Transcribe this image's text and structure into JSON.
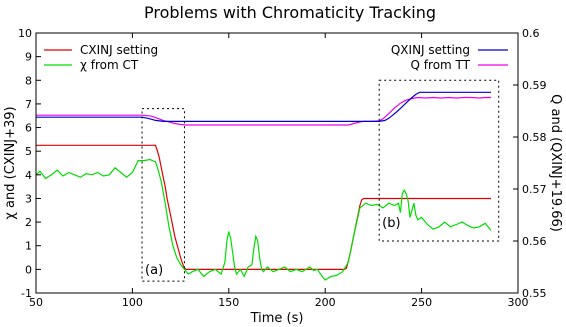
{
  "chart_data": {
    "type": "line",
    "title": "Problems with Chromaticity Tracking",
    "xlabel": "Time (s)",
    "ylabel_left": "χ and (CXINJ+39)",
    "ylabel_right": "Q and (QXINJ+19.66)",
    "xlim": [
      50,
      300
    ],
    "ylim_left": [
      -1,
      10
    ],
    "ylim_right": [
      0.55,
      0.6
    ],
    "xticks": [
      50,
      100,
      150,
      200,
      250,
      300
    ],
    "yticks_left": [
      -1,
      0,
      1,
      2,
      3,
      4,
      5,
      6,
      7,
      8,
      9,
      10
    ],
    "yticks_right": [
      0.55,
      0.56,
      0.57,
      0.58,
      0.59,
      0.6
    ],
    "grid": false,
    "legend_left": "top-left",
    "legend_right": "top-right",
    "series": [
      {
        "name": "CXINJ setting",
        "axis": "left",
        "color": "#e00000",
        "x": [
          50,
          105,
          112,
          113,
          114,
          115,
          116,
          117,
          118,
          119,
          120,
          121,
          122,
          123,
          124,
          125,
          126,
          127,
          128,
          210,
          211,
          212,
          213,
          214,
          215,
          216,
          217,
          218,
          219,
          220,
          221,
          286
        ],
        "y": [
          5.25,
          5.25,
          5.25,
          5.0,
          4.7,
          4.3,
          3.9,
          3.5,
          3.0,
          2.6,
          2.2,
          1.8,
          1.4,
          1.1,
          0.8,
          0.5,
          0.25,
          0.05,
          0.0,
          0.0,
          0.05,
          0.35,
          0.7,
          1.1,
          1.5,
          1.9,
          2.3,
          2.7,
          2.95,
          3.0,
          3.0,
          3.0
        ]
      },
      {
        "name": "χ from CT",
        "axis": "left",
        "color": "#00dd00",
        "x": [
          50,
          52,
          55,
          58,
          61,
          64,
          67,
          70,
          73,
          76,
          79,
          82,
          85,
          88,
          91,
          94,
          97,
          100,
          103,
          106,
          109,
          112,
          113,
          115,
          117,
          119,
          121,
          123,
          125,
          127,
          129,
          131,
          134,
          137,
          140,
          143,
          146,
          148,
          149,
          150,
          151,
          152,
          153,
          154,
          156,
          158,
          160,
          162,
          163,
          164,
          165,
          166,
          167,
          168,
          170,
          173,
          176,
          179,
          182,
          185,
          188,
          190,
          192,
          194,
          196,
          198,
          200,
          203,
          206,
          209,
          212,
          215,
          218,
          221,
          224,
          227,
          230,
          233,
          236,
          238,
          239,
          240,
          241,
          242,
          243,
          244,
          246,
          247,
          248,
          250,
          253,
          256,
          259,
          262,
          265,
          268,
          271,
          274,
          277,
          280,
          283,
          286
        ],
        "y": [
          4.0,
          4.15,
          3.85,
          4.0,
          4.2,
          3.95,
          4.1,
          4.0,
          3.9,
          4.05,
          4.0,
          4.1,
          3.95,
          4.0,
          4.3,
          4.1,
          3.9,
          4.1,
          4.6,
          4.6,
          4.65,
          4.55,
          4.3,
          3.7,
          2.8,
          1.8,
          1.0,
          0.5,
          0.2,
          0.0,
          -0.2,
          -0.1,
          0.0,
          -0.3,
          -0.1,
          0.0,
          -0.2,
          0.3,
          1.2,
          1.6,
          1.3,
          0.7,
          0.1,
          -0.2,
          0.0,
          -0.3,
          0.1,
          0.2,
          0.9,
          1.4,
          1.2,
          0.5,
          0.0,
          -0.1,
          0.1,
          -0.1,
          0.0,
          0.1,
          -0.1,
          0.0,
          -0.1,
          0.0,
          0.1,
          -0.05,
          0.0,
          -0.25,
          -0.45,
          -0.3,
          -0.25,
          -0.1,
          0.3,
          1.5,
          2.6,
          2.8,
          2.7,
          2.75,
          2.6,
          2.8,
          2.7,
          2.8,
          2.4,
          3.2,
          3.35,
          3.2,
          2.9,
          2.2,
          2.8,
          2.3,
          2.1,
          2.2,
          1.9,
          1.7,
          1.8,
          2.0,
          1.8,
          1.9,
          2.0,
          1.85,
          1.75,
          1.8,
          1.95,
          1.65
        ]
      },
      {
        "name": "QXINJ setting",
        "axis": "right",
        "color": "#0000cc",
        "x": [
          50,
          105,
          108,
          110,
          112,
          114,
          116,
          228,
          231,
          233,
          235,
          237,
          239,
          241,
          243,
          245,
          247,
          249,
          286
        ],
        "y": [
          0.5838,
          0.5838,
          0.5836,
          0.5834,
          0.5832,
          0.5831,
          0.583,
          0.583,
          0.5832,
          0.5836,
          0.5842,
          0.5848,
          0.5855,
          0.5862,
          0.5869,
          0.5876,
          0.5882,
          0.5886,
          0.5886
        ]
      },
      {
        "name": "Q from TT",
        "axis": "right",
        "color": "#ee00ee",
        "x": [
          50,
          105,
          110,
          113,
          116,
          119,
          122,
          125,
          128,
          130,
          210,
          212,
          214,
          216,
          218,
          220,
          224,
          228,
          230,
          233,
          236,
          239,
          242,
          245,
          248,
          252,
          256,
          260,
          264,
          268,
          272,
          276,
          280,
          283,
          286
        ],
        "y": [
          0.5842,
          0.5842,
          0.584,
          0.5836,
          0.5832,
          0.5829,
          0.5826,
          0.5824,
          0.5823,
          0.5823,
          0.5823,
          0.5823,
          0.5825,
          0.5827,
          0.5829,
          0.583,
          0.583,
          0.5831,
          0.5835,
          0.5845,
          0.5856,
          0.5865,
          0.5871,
          0.5874,
          0.5876,
          0.5875,
          0.5876,
          0.5875,
          0.5876,
          0.5875,
          0.5876,
          0.5876,
          0.5875,
          0.5876,
          0.5876
        ]
      }
    ],
    "annotations": [
      {
        "label": "(a)",
        "box_x": [
          105,
          127
        ],
        "box_y": [
          -0.5,
          6.8
        ]
      },
      {
        "label": "(b)",
        "box_x": [
          228,
          290
        ],
        "box_y": [
          1.2,
          8.0
        ]
      }
    ]
  }
}
